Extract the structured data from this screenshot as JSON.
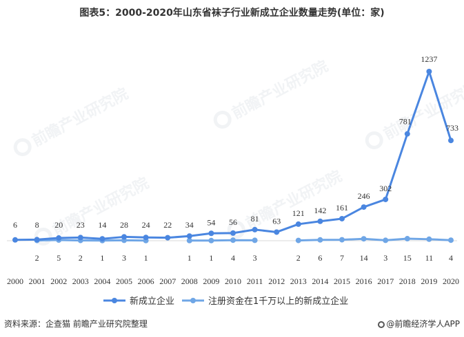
{
  "title": "图表5：2000-2020年山东省袜子行业新成立企业数量走势(单位：家)",
  "footer": {
    "source": "资料来源：企查猫 前瞻产业研究院整理",
    "brand": "@前瞻经济学人APP"
  },
  "watermark": {
    "text": "前瞻产业研究院"
  },
  "colors": {
    "series1": "#4a86e0",
    "series2": "#6fa6e6",
    "text": "#333333",
    "baseline": "#d9d9d9"
  },
  "chart_data": {
    "type": "line",
    "categories": [
      "2000",
      "2001",
      "2002",
      "2003",
      "2004",
      "2005",
      "2006",
      "2007",
      "2008",
      "2009",
      "2010",
      "2011",
      "2012",
      "2013",
      "2014",
      "2015",
      "2016",
      "2017",
      "2018",
      "2019",
      "2020"
    ],
    "series": [
      {
        "name": "新成立企业",
        "values": [
          6,
          8,
          20,
          23,
          14,
          28,
          24,
          22,
          34,
          54,
          56,
          81,
          63,
          121,
          142,
          161,
          246,
          302,
          781,
          1237,
          733
        ]
      },
      {
        "name": "注册资金在1千万以上的新成立企业",
        "values": [
          null,
          2,
          5,
          2,
          1,
          3,
          1,
          null,
          1,
          1,
          4,
          3,
          null,
          2,
          6,
          7,
          14,
          3,
          15,
          11,
          4
        ]
      }
    ],
    "ylim": [
      0,
      1300
    ],
    "grid": false,
    "legend": "bottom"
  }
}
